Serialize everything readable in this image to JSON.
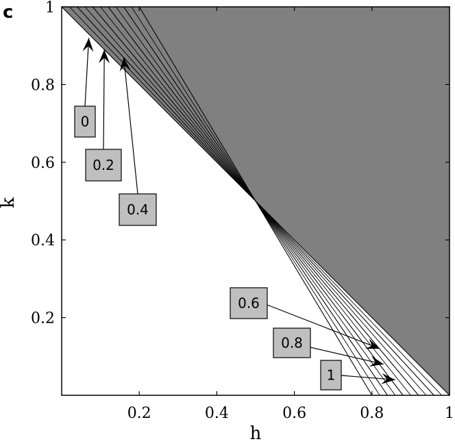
{
  "panel_letter": "c",
  "chart_data": {
    "type": "line",
    "title": "",
    "xlabel": "h",
    "ylabel": "k",
    "xlim": [
      0,
      1
    ],
    "ylim": [
      0,
      1
    ],
    "xticks": [
      0.2,
      0.4,
      0.6,
      0.8,
      1
    ],
    "xtick_labels": [
      "0.2",
      "0.4",
      "0.6",
      "0.8",
      "1"
    ],
    "yticks": [
      0.2,
      0.4,
      0.6,
      0.8,
      1
    ],
    "ytick_labels": [
      "0.2",
      "0.4",
      "0.6",
      "0.8",
      "1"
    ],
    "grid": false,
    "shaded_region": {
      "description": "region above h + k = 1",
      "color": "#808080"
    },
    "series": [
      {
        "label": "0",
        "points": [
          [
            0.0,
            1.0
          ],
          [
            0.5,
            0.5
          ],
          [
            1.0,
            0.0
          ]
        ]
      },
      {
        "label": "0.2",
        "points": [
          [
            0.04,
            1.0
          ],
          [
            0.5,
            0.5
          ],
          [
            0.96,
            0.0
          ]
        ]
      },
      {
        "label": "0.4",
        "points": [
          [
            0.08,
            1.0
          ],
          [
            0.5,
            0.5
          ],
          [
            0.92,
            0.0
          ]
        ]
      },
      {
        "label": "0.6",
        "points": [
          [
            0.12,
            1.0
          ],
          [
            0.5,
            0.5
          ],
          [
            0.88,
            0.0
          ]
        ]
      },
      {
        "label": "0.8",
        "points": [
          [
            0.16,
            1.0
          ],
          [
            0.5,
            0.5
          ],
          [
            0.84,
            0.0
          ]
        ]
      },
      {
        "label": "1",
        "points": [
          [
            0.2,
            1.0
          ],
          [
            0.5,
            0.5
          ],
          [
            0.8,
            0.0
          ]
        ]
      }
    ],
    "annotations": [
      {
        "text": "0",
        "target": [
          0.07,
          0.92
        ]
      },
      {
        "text": "0.2",
        "target": [
          0.11,
          0.89
        ]
      },
      {
        "text": "0.4",
        "target": [
          0.16,
          0.87
        ]
      },
      {
        "text": "0.6",
        "target": [
          0.82,
          0.12
        ]
      },
      {
        "text": "0.8",
        "target": [
          0.83,
          0.08
        ]
      },
      {
        "text": "1",
        "target": [
          0.86,
          0.04
        ]
      }
    ]
  }
}
